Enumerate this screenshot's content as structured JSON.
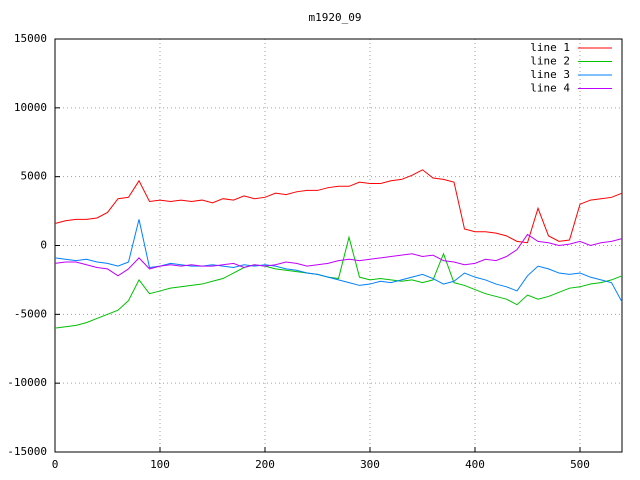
{
  "chart_data": {
    "type": "line",
    "title": "m1920_09",
    "x": [
      0,
      10,
      20,
      30,
      40,
      50,
      60,
      70,
      80,
      90,
      100,
      110,
      120,
      130,
      140,
      150,
      160,
      170,
      180,
      190,
      200,
      210,
      220,
      230,
      240,
      250,
      260,
      270,
      280,
      290,
      300,
      310,
      320,
      330,
      340,
      350,
      360,
      370,
      380,
      390,
      400,
      410,
      420,
      430,
      440,
      450,
      460,
      470,
      480,
      490,
      500,
      510,
      520,
      530,
      540
    ],
    "series": [
      {
        "name": "line 1",
        "color": "#ff0000",
        "values": [
          1600,
          1800,
          1900,
          1900,
          2000,
          2400,
          3400,
          3500,
          4700,
          3200,
          3300,
          3200,
          3300,
          3200,
          3300,
          3100,
          3400,
          3300,
          3600,
          3400,
          3500,
          3800,
          3700,
          3900,
          4000,
          4000,
          4200,
          4300,
          4300,
          4600,
          4500,
          4500,
          4700,
          4800,
          5100,
          5500,
          4900,
          4800,
          4600,
          1200,
          1000,
          1000,
          900,
          700,
          300,
          200,
          2700,
          700,
          300,
          400,
          3000,
          3300,
          3400,
          3500,
          3800
        ]
      },
      {
        "name": "line 2",
        "color": "#00c000",
        "values": [
          -6000,
          -5900,
          -5800,
          -5600,
          -5300,
          -5000,
          -4700,
          -4000,
          -2500,
          -3500,
          -3300,
          -3100,
          -3000,
          -2900,
          -2800,
          -2600,
          -2400,
          -2000,
          -1600,
          -1400,
          -1500,
          -1700,
          -1800,
          -1900,
          -2000,
          -2100,
          -2300,
          -2400,
          600,
          -2300,
          -2500,
          -2400,
          -2500,
          -2600,
          -2500,
          -2700,
          -2500,
          -600,
          -2700,
          -2900,
          -3200,
          -3500,
          -3700,
          -3900,
          -4300,
          -3600,
          -3900,
          -3700,
          -3400,
          -3100,
          -3000,
          -2800,
          -2700,
          -2500,
          -2200
        ]
      },
      {
        "name": "line 3",
        "color": "#0080ff",
        "values": [
          -900,
          -1000,
          -1100,
          -1000,
          -1200,
          -1300,
          -1500,
          -1200,
          1900,
          -1600,
          -1500,
          -1300,
          -1400,
          -1500,
          -1500,
          -1400,
          -1500,
          -1600,
          -1400,
          -1500,
          -1400,
          -1500,
          -1700,
          -1800,
          -2000,
          -2100,
          -2300,
          -2500,
          -2700,
          -2900,
          -2800,
          -2600,
          -2700,
          -2500,
          -2300,
          -2100,
          -2400,
          -2800,
          -2600,
          -2000,
          -2300,
          -2500,
          -2800,
          -3000,
          -3300,
          -2200,
          -1500,
          -1700,
          -2000,
          -2100,
          -2000,
          -2300,
          -2500,
          -2700,
          -4100
        ]
      },
      {
        "name": "line 4",
        "color": "#c000ff",
        "values": [
          -1300,
          -1200,
          -1200,
          -1400,
          -1600,
          -1700,
          -2200,
          -1700,
          -900,
          -1700,
          -1500,
          -1400,
          -1500,
          -1400,
          -1500,
          -1500,
          -1400,
          -1300,
          -1600,
          -1400,
          -1500,
          -1400,
          -1200,
          -1300,
          -1500,
          -1400,
          -1300,
          -1100,
          -1000,
          -1100,
          -1000,
          -900,
          -800,
          -700,
          -600,
          -800,
          -700,
          -1100,
          -1200,
          -1400,
          -1300,
          -1000,
          -1100,
          -800,
          -300,
          800,
          300,
          200,
          0,
          100,
          300,
          0,
          200,
          300,
          500
        ]
      }
    ],
    "xlim": [
      0,
      540
    ],
    "xticks": [
      0,
      100,
      200,
      300,
      400,
      500
    ],
    "ylim": [
      -15000,
      15000
    ],
    "yticks": [
      -15000,
      -10000,
      -5000,
      0,
      5000,
      10000,
      15000
    ],
    "grid": true,
    "legend": "top-right"
  }
}
